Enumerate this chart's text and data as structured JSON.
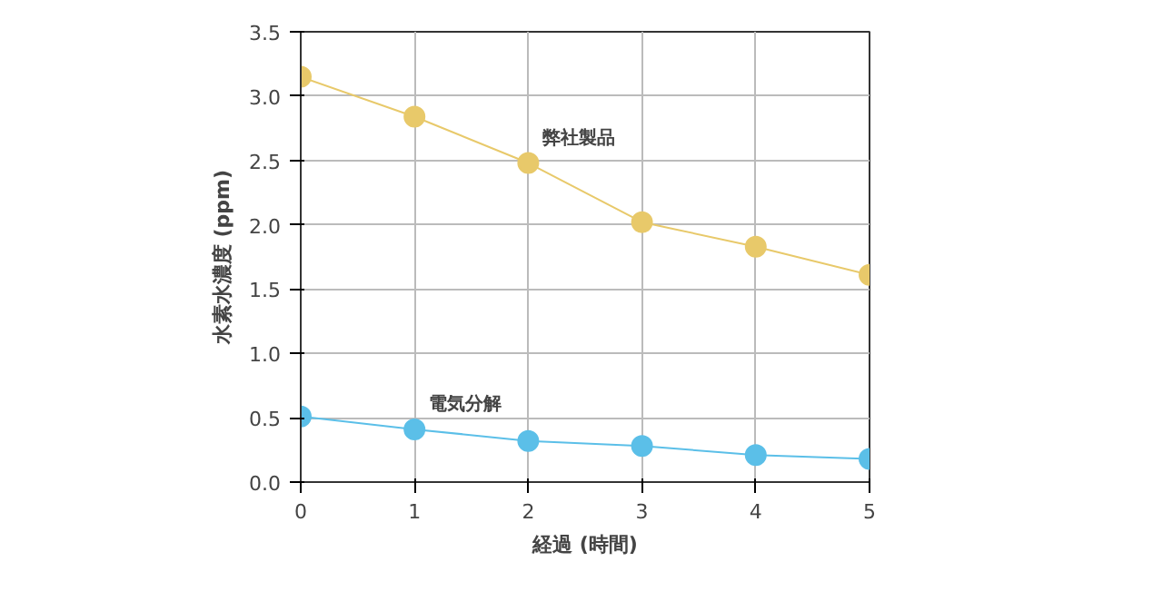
{
  "chart_data": {
    "type": "line",
    "xlabel": "経過 (時間)",
    "ylabel": "水素水濃度 (ppm)",
    "x": [
      0,
      1,
      2,
      3,
      4,
      5
    ],
    "series": [
      {
        "name": "弊社製品",
        "color": "#e8c96a",
        "values": [
          3.15,
          2.84,
          2.48,
          2.02,
          1.83,
          1.61
        ]
      },
      {
        "name": "電気分解",
        "color": "#5bbfe8",
        "values": [
          0.51,
          0.41,
          0.32,
          0.28,
          0.21,
          0.18
        ]
      }
    ],
    "xlim": [
      0,
      5
    ],
    "xticks": [
      0,
      1,
      2,
      3,
      4,
      5
    ],
    "ylim": [
      0,
      3.5
    ],
    "yticks": [
      {
        "value": 0,
        "label": "0.0"
      },
      {
        "value": 0.5,
        "label": "0.5"
      },
      {
        "value": 1,
        "label": "1.0"
      },
      {
        "value": 1.5,
        "label": "1.5"
      },
      {
        "value": 2,
        "label": "2.0"
      },
      {
        "value": 2.5,
        "label": "2.5"
      },
      {
        "value": 3,
        "label": "3.0"
      },
      {
        "value": 3.5,
        "label": "3.5"
      }
    ],
    "grid": true,
    "marker": "circle",
    "line_style": "solid"
  }
}
